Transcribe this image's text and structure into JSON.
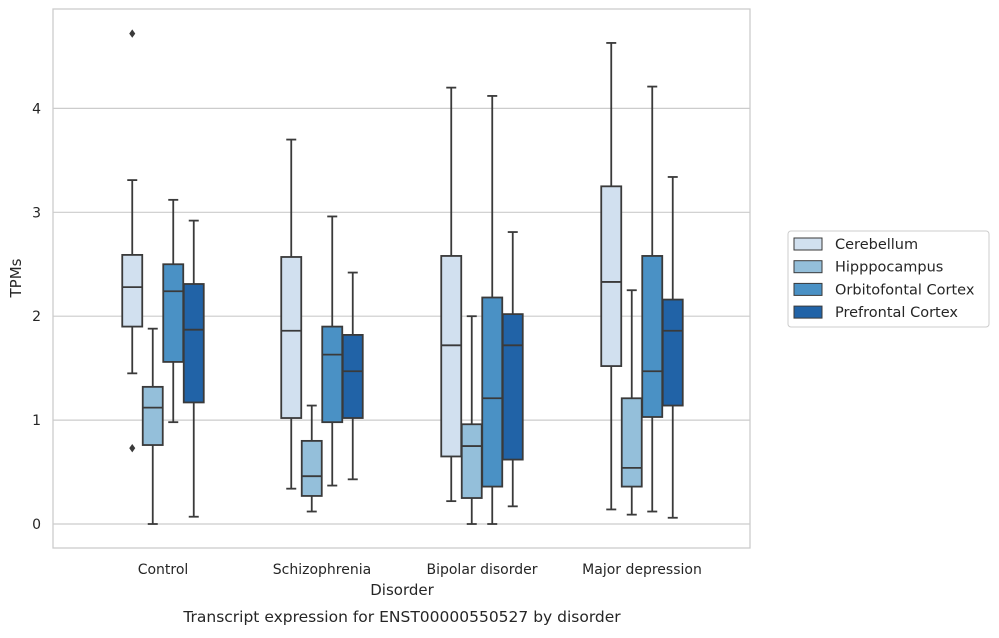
{
  "chart_data": {
    "type": "boxplot",
    "title": "",
    "caption": "Transcript expression for ENST00000550527 by disorder",
    "xlabel": "Disorder",
    "ylabel": "TPMs",
    "ylim": [
      -0.22,
      4.97
    ],
    "yticks": [
      0,
      1,
      2,
      3,
      4
    ],
    "grid": "horizontal",
    "legend_position": "right",
    "categories": [
      "Control",
      "Schizophrenia",
      "Bipolar disorder",
      "Major depression"
    ],
    "series": [
      {
        "name": "Cerebellum",
        "color": "#d1e0ef",
        "boxes": [
          {
            "min": 1.45,
            "q1": 1.9,
            "median": 2.28,
            "q3": 2.59,
            "max": 3.31,
            "outliers": [
              4.72,
              0.73
            ]
          },
          {
            "min": 0.34,
            "q1": 1.02,
            "median": 1.86,
            "q3": 2.57,
            "max": 3.7,
            "outliers": []
          },
          {
            "min": 0.22,
            "q1": 0.65,
            "median": 1.72,
            "q3": 2.58,
            "max": 4.2,
            "outliers": []
          },
          {
            "min": 0.14,
            "q1": 1.52,
            "median": 2.33,
            "q3": 3.25,
            "max": 4.63,
            "outliers": []
          }
        ]
      },
      {
        "name": "Hipppocampus",
        "color": "#94bfda",
        "boxes": [
          {
            "min": 0.0,
            "q1": 0.76,
            "median": 1.12,
            "q3": 1.32,
            "max": 1.88,
            "outliers": []
          },
          {
            "min": 0.12,
            "q1": 0.27,
            "median": 0.46,
            "q3": 0.8,
            "max": 1.14,
            "outliers": []
          },
          {
            "min": 0.0,
            "q1": 0.25,
            "median": 0.75,
            "q3": 0.96,
            "max": 2.0,
            "outliers": []
          },
          {
            "min": 0.09,
            "q1": 0.36,
            "median": 0.54,
            "q3": 1.21,
            "max": 2.25,
            "outliers": []
          }
        ]
      },
      {
        "name": "Orbitofontal Cortex",
        "color": "#4a91c5",
        "boxes": [
          {
            "min": 0.98,
            "q1": 1.56,
            "median": 2.24,
            "q3": 2.5,
            "max": 3.12,
            "outliers": []
          },
          {
            "min": 0.37,
            "q1": 0.98,
            "median": 1.63,
            "q3": 1.9,
            "max": 2.96,
            "outliers": []
          },
          {
            "min": 0.0,
            "q1": 0.36,
            "median": 1.21,
            "q3": 2.18,
            "max": 4.12,
            "outliers": []
          },
          {
            "min": 0.12,
            "q1": 1.03,
            "median": 1.47,
            "q3": 2.58,
            "max": 4.21,
            "outliers": []
          }
        ]
      },
      {
        "name": "Prefrontal Cortex",
        "color": "#2163a7",
        "boxes": [
          {
            "min": 0.07,
            "q1": 1.17,
            "median": 1.87,
            "q3": 2.31,
            "max": 2.92,
            "outliers": []
          },
          {
            "min": 0.43,
            "q1": 1.02,
            "median": 1.47,
            "q3": 1.82,
            "max": 2.42,
            "outliers": []
          },
          {
            "min": 0.17,
            "q1": 0.62,
            "median": 1.72,
            "q3": 2.02,
            "max": 2.81,
            "outliers": []
          },
          {
            "min": 0.06,
            "q1": 1.14,
            "median": 1.86,
            "q3": 2.16,
            "max": 3.34,
            "outliers": []
          }
        ]
      }
    ]
  }
}
